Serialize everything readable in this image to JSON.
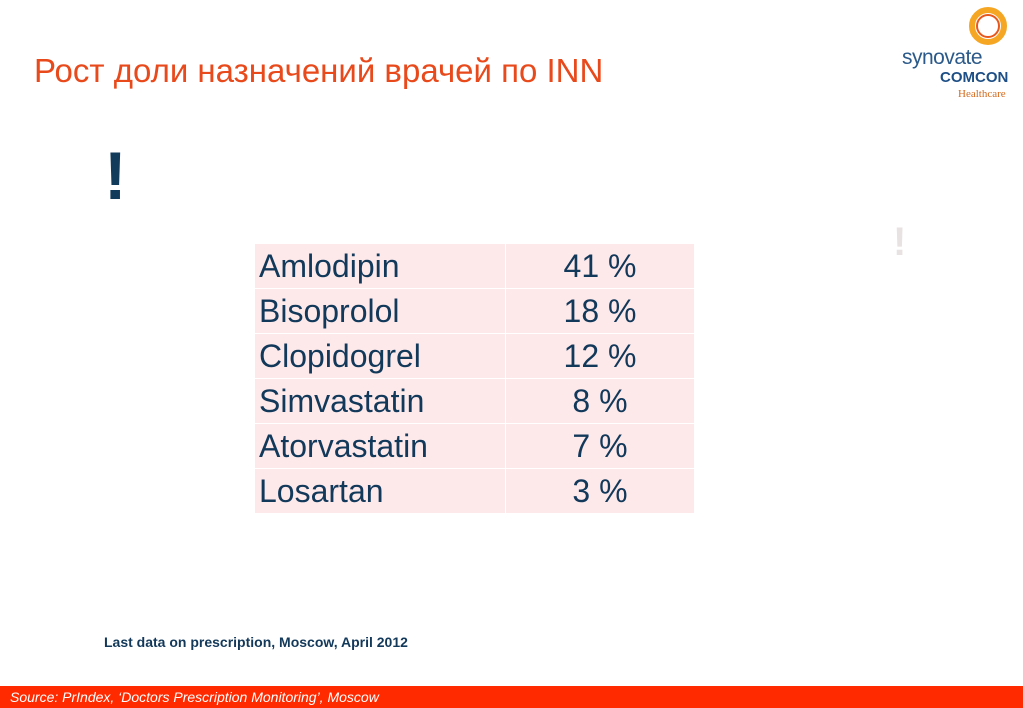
{
  "slide": {
    "title": "Рост доли назначений врачей по INN",
    "exclaim_main": "!",
    "exclaim_faint": "!",
    "note": "Last data on prescription, Moscow, April 2012",
    "source": "Source:  PrIndex, ‘Doctors Prescription Monitoring’, Moscow"
  },
  "logo": {
    "line1": "synovate",
    "line2": "COMCON",
    "line3": "Healthcare",
    "colors": {
      "ring_outer": "#f5a623",
      "ring_inner": "#e8581c",
      "text": "#2b5a8a"
    }
  },
  "table": {
    "rows": [
      {
        "name": "Amlodipin",
        "value": "41 %"
      },
      {
        "name": "Bisoprolol",
        "value": "18 %"
      },
      {
        "name": "Clopidogrel",
        "value": "12 %"
      },
      {
        "name": "Simvastatin",
        "value": "8 %"
      },
      {
        "name": "Atorvastatin",
        "value": "7 %"
      },
      {
        "name": "Losartan",
        "value": "3 %"
      }
    ]
  },
  "colors": {
    "title": "#e84a1c",
    "text_dark": "#12385a",
    "cell_bg": "#fde9ea",
    "footer_bg": "#ff2a00"
  }
}
